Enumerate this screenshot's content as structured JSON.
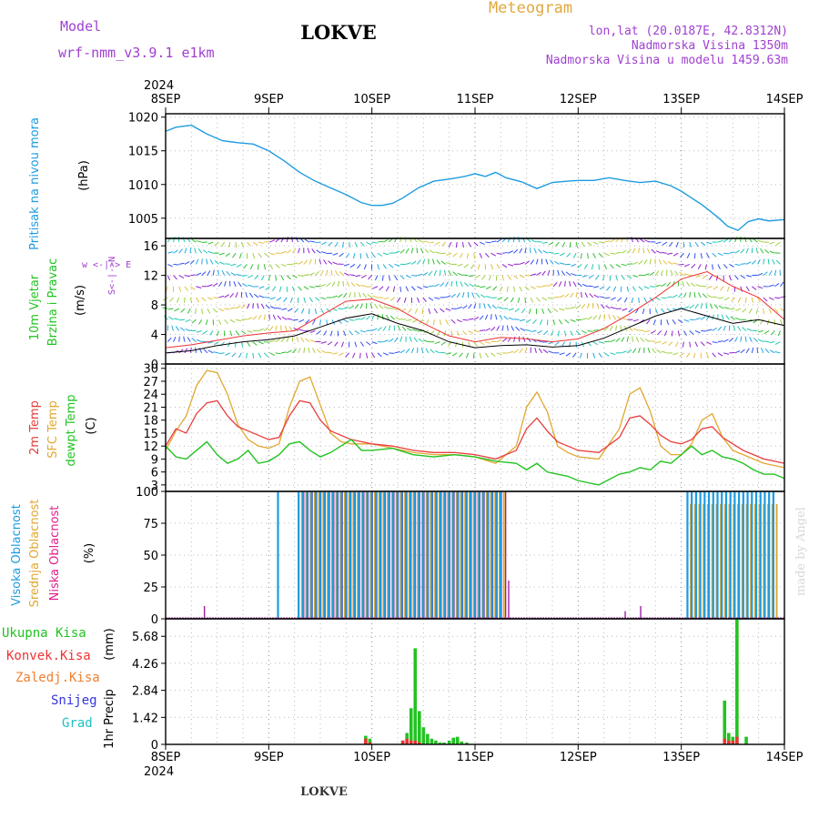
{
  "header": {
    "model_label": "Model",
    "model_name": "wrf-nmm_v3.9.1  e1km",
    "station": "LOKVE",
    "product": "Meteogram",
    "coords": "lon,lat (20.0187E, 42.8312N)",
    "elevation": "Nadmorska Visina 1350m",
    "model_elevation": "Nadmorska Visina u modelu 1459.63m",
    "year_top": "2024",
    "year_bottom": "2024",
    "footer_station": "LOKVE",
    "credit": "made by Angel"
  },
  "colors": {
    "pressure": "#1e9be0",
    "wind_speed": "#000000",
    "gust": "#ee3333",
    "temp2m": "#e83c3c",
    "sfc_temp": "#e0a830",
    "dewpt": "#22c322",
    "cloud_high": "#1e9be0",
    "cloud_mid": "#e0a830",
    "cloud_low": "#a020a0",
    "precip_total": "#22c322",
    "precip_conv": "#ee3333",
    "precip_frz": "#f08030",
    "snow": "#3333dd",
    "hail": "#20c0c0",
    "label_purple": "#a040d0",
    "label_orange": "#e0a840"
  },
  "chart_data": [
    {
      "type": "line",
      "panel": "pressure",
      "ylabel_name": "Pritisak na nivou mora",
      "ylabel_unit": "(hPa)",
      "ylim": [
        1002,
        1020.5
      ],
      "yticks": [
        1005,
        1010,
        1015,
        1020
      ],
      "grid": true,
      "x_days": [
        0,
        0.1,
        0.25,
        0.4,
        0.55,
        0.7,
        0.85,
        1.0,
        1.15,
        1.3,
        1.45,
        1.6,
        1.75,
        1.9,
        2.0,
        2.1,
        2.2,
        2.3,
        2.45,
        2.6,
        2.75,
        2.9,
        3.0,
        3.1,
        3.2,
        3.3,
        3.45,
        3.6,
        3.75,
        3.9,
        4.0,
        4.15,
        4.3,
        4.45,
        4.6,
        4.75,
        4.9,
        5.0,
        5.1,
        5.2,
        5.35,
        5.45,
        5.55,
        5.65,
        5.75,
        5.85,
        6.0
      ],
      "series": [
        {
          "values": [
            1017.9,
            1018.5,
            1018.8,
            1017.5,
            1016.5,
            1016.2,
            1016.0,
            1015.0,
            1013.5,
            1011.8,
            1010.5,
            1009.5,
            1008.5,
            1007.3,
            1006.9,
            1006.9,
            1007.2,
            1008.0,
            1009.5,
            1010.5,
            1010.8,
            1011.2,
            1011.6,
            1011.2,
            1011.8,
            1011.0,
            1010.4,
            1009.4,
            1010.3,
            1010.5,
            1010.6,
            1010.6,
            1011.0,
            1010.6,
            1010.3,
            1010.5,
            1009.8,
            1009.0,
            1008.0,
            1007.0,
            1005.2,
            1003.8,
            1003.2,
            1004.5,
            1004.9,
            1004.6,
            1004.8
          ]
        }
      ]
    },
    {
      "type": "line",
      "panel": "wind",
      "ylabel_name": "10m Vjetar",
      "ylabel_name2": "Brzina i Pravac",
      "ylabel_unit": "(m/s)",
      "compass_label": "w <-|-> E",
      "compass_label2": "S<-|->N",
      "ylim": [
        0,
        17
      ],
      "yticks": [
        0,
        4,
        8,
        12,
        16
      ],
      "y_tick_labels": [
        "0",
        "4",
        "8",
        "12",
        "16"
      ],
      "grid": true,
      "x_days": [
        0,
        0.25,
        0.5,
        0.75,
        1.0,
        1.25,
        1.5,
        1.75,
        2.0,
        2.25,
        2.5,
        2.75,
        3.0,
        3.25,
        3.5,
        3.75,
        4.0,
        4.25,
        4.5,
        4.75,
        5.0,
        5.25,
        5.5,
        5.75,
        6.0
      ],
      "series": [
        {
          "values": [
            1.5,
            1.8,
            2.5,
            3.0,
            3.3,
            3.8,
            5.0,
            6.2,
            6.8,
            5.5,
            4.5,
            3.0,
            2.2,
            2.5,
            2.6,
            2.3,
            2.5,
            3.5,
            5.0,
            6.5,
            7.5,
            6.5,
            5.5,
            6.0,
            5.2
          ]
        },
        {
          "values": [
            2.2,
            2.6,
            3.2,
            3.8,
            4.2,
            4.5,
            6.5,
            8.5,
            8.8,
            7.5,
            5.5,
            3.8,
            3.0,
            3.6,
            3.4,
            3.0,
            3.4,
            4.8,
            6.8,
            9.0,
            11.5,
            12.5,
            10.5,
            9.0,
            6.0
          ]
        }
      ]
    },
    {
      "type": "line",
      "panel": "temperature",
      "ylabel_name": "2m Temp",
      "ylabel_name2": "SFC Temp",
      "ylabel_name3": "dewpt Temp",
      "ylabel_unit": "(C)",
      "ylim": [
        1.5,
        31
      ],
      "yticks": [
        3,
        6,
        9,
        12,
        15,
        18,
        21,
        24,
        27,
        30
      ],
      "grid": true,
      "x_days": [
        0,
        0.1,
        0.2,
        0.3,
        0.4,
        0.5,
        0.6,
        0.7,
        0.8,
        0.9,
        1.0,
        1.1,
        1.2,
        1.3,
        1.4,
        1.5,
        1.6,
        1.7,
        1.8,
        1.9,
        2.0,
        2.2,
        2.4,
        2.6,
        2.8,
        3.0,
        3.2,
        3.4,
        3.5,
        3.6,
        3.7,
        3.8,
        3.9,
        4.0,
        4.2,
        4.4,
        4.5,
        4.6,
        4.7,
        4.8,
        4.9,
        5.0,
        5.1,
        5.2,
        5.3,
        5.4,
        5.5,
        5.6,
        5.7,
        5.8,
        5.9,
        6.0
      ],
      "series": [
        {
          "values": [
            12.0,
            16.0,
            15.0,
            19.5,
            22.0,
            22.5,
            19.0,
            16.5,
            15.5,
            14.5,
            13.5,
            14.0,
            19.0,
            22.5,
            22.0,
            18.0,
            15.5,
            14.5,
            13.5,
            13.0,
            12.5,
            12.0,
            11.0,
            10.5,
            10.5,
            10.0,
            9.0,
            11.0,
            16.0,
            18.5,
            15.5,
            13.0,
            12.0,
            11.0,
            10.5,
            14.0,
            18.5,
            19.0,
            17.0,
            14.5,
            13.0,
            12.5,
            13.5,
            16.0,
            16.5,
            14.0,
            12.5,
            11.0,
            10.0,
            9.0,
            8.5,
            8.0
          ]
        },
        {
          "values": [
            11.0,
            15.5,
            19.0,
            26.0,
            29.5,
            29.0,
            24.0,
            17.0,
            13.5,
            12.0,
            11.5,
            12.5,
            21.0,
            27.0,
            28.0,
            21.5,
            15.0,
            13.0,
            12.5,
            12.5,
            12.5,
            11.5,
            10.5,
            10.0,
            10.0,
            9.5,
            8.0,
            12.0,
            21.0,
            24.5,
            20.0,
            12.0,
            10.5,
            9.5,
            9.0,
            16.0,
            24.0,
            25.5,
            20.0,
            12.0,
            10.0,
            10.0,
            12.5,
            18.0,
            19.5,
            14.0,
            11.0,
            10.0,
            9.0,
            8.0,
            7.5,
            7.0
          ]
        },
        {
          "values": [
            12.0,
            9.5,
            9.0,
            11.0,
            13.0,
            10.0,
            8.0,
            9.0,
            11.0,
            8.0,
            8.5,
            10.0,
            12.5,
            13.0,
            11.0,
            9.5,
            10.5,
            12.0,
            13.5,
            11.0,
            11.0,
            11.5,
            10.0,
            9.5,
            10.0,
            9.5,
            8.5,
            8.0,
            6.5,
            8.0,
            6.0,
            5.5,
            5.0,
            4.0,
            3.0,
            5.5,
            6.0,
            7.0,
            6.5,
            8.5,
            8.0,
            10.0,
            12.0,
            10.0,
            11.0,
            9.5,
            9.0,
            8.0,
            6.5,
            5.5,
            5.5,
            4.5
          ]
        }
      ]
    },
    {
      "type": "bar",
      "panel": "cloud",
      "ylabel_name": "Visoka Oblacnost",
      "ylabel_name2": "Srednja Oblacnost",
      "ylabel_name3": "Niska Oblacnost",
      "ylabel_unit": "(%)",
      "ylim": [
        0,
        100
      ],
      "yticks": [
        0,
        25,
        50,
        75,
        100
      ],
      "grid": true,
      "note": "High cloud (blue) 100% around 9 SEP 02h, mixed high/mid/low 100% bars 9 SEP 07h to 11 SEP 06h, high/mid 85-100% bars 13 SEP 01h to 13 SEP 22h; low cloud 0-30% otherwise",
      "segments": [
        {
          "start": 1.08,
          "end": 1.09,
          "high": 100,
          "mid": 0,
          "low": 0
        },
        {
          "start": 1.28,
          "end": 3.27,
          "high": 100,
          "mid": 100,
          "low": 100
        },
        {
          "start": 5.05,
          "end": 5.92,
          "high": 100,
          "mid": 90,
          "low": 0
        }
      ],
      "low_spikes": [
        {
          "x": 0.37,
          "v": 10
        },
        {
          "x": 3.32,
          "v": 30
        },
        {
          "x": 4.45,
          "v": 6
        },
        {
          "x": 4.6,
          "v": 10
        }
      ]
    },
    {
      "type": "bar",
      "panel": "precip",
      "ylabel_name": "1hr Precip",
      "ylabel_unit": "(mm)",
      "legend": [
        "Ukupna Kisa",
        "Konvek.Kisa",
        "Zaledj.Kisa",
        "Snijeg",
        "Grad"
      ],
      "ylim": [
        0,
        6.6
      ],
      "yticks": [
        0,
        1.42,
        2.84,
        4.26,
        5.68
      ],
      "y_tick_labels": [
        "0",
        "1.42",
        "2.84",
        "4.26",
        "5.68"
      ],
      "grid": true,
      "x_days": [
        1.94,
        1.98,
        2.3,
        2.34,
        2.38,
        2.42,
        2.46,
        2.5,
        2.54,
        2.58,
        2.62,
        2.66,
        2.7,
        2.75,
        2.79,
        2.83,
        2.87,
        2.92,
        5.42,
        5.46,
        5.5,
        5.54,
        5.63
      ],
      "series": [
        {
          "name": "Ukupna Kisa",
          "values": [
            0.45,
            0.3,
            0.2,
            0.6,
            1.9,
            5.05,
            1.75,
            0.9,
            0.55,
            0.3,
            0.2,
            0.1,
            0.1,
            0.2,
            0.35,
            0.4,
            0.15,
            0.1,
            2.3,
            0.6,
            0.4,
            6.6,
            0.4
          ]
        },
        {
          "name": "Konvek.Kisa",
          "values": [
            0.3,
            0.1,
            0.2,
            0.3,
            0.2,
            0.2,
            0.1,
            0.0,
            0.0,
            0.0,
            0.0,
            0.0,
            0.0,
            0.0,
            0.0,
            0.0,
            0.0,
            0.0,
            0.3,
            0.2,
            0.2,
            0.4,
            0.0
          ]
        }
      ]
    }
  ],
  "time_axis": {
    "days": [
      "8SEP",
      "9SEP",
      "10SEP",
      "11SEP",
      "12SEP",
      "13SEP",
      "14SEP"
    ]
  }
}
